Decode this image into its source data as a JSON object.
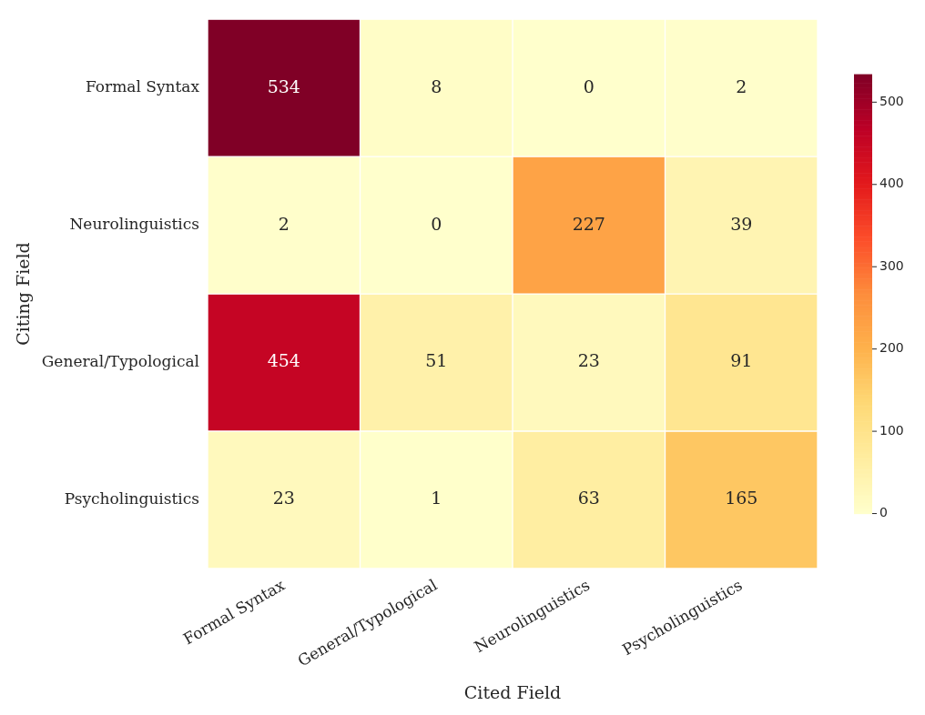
{
  "chart_data": {
    "type": "heatmap",
    "xlabel": "Cited Field",
    "ylabel": "Citing Field",
    "categories": [
      "Formal Syntax",
      "General/Typological",
      "Neurolinguistics",
      "Psycholinguistics"
    ],
    "y_categories": [
      "Formal Syntax",
      "Neurolinguistics",
      "General/Typological",
      "Psycholinguistics"
    ],
    "cells": [
      [
        534,
        8,
        0,
        2
      ],
      [
        2,
        0,
        227,
        39
      ],
      [
        454,
        51,
        23,
        91
      ],
      [
        23,
        1,
        63,
        165
      ]
    ],
    "clim": [
      0,
      534
    ],
    "cticks": [
      0,
      100,
      200,
      300,
      400,
      500
    ],
    "data_labels": true
  }
}
